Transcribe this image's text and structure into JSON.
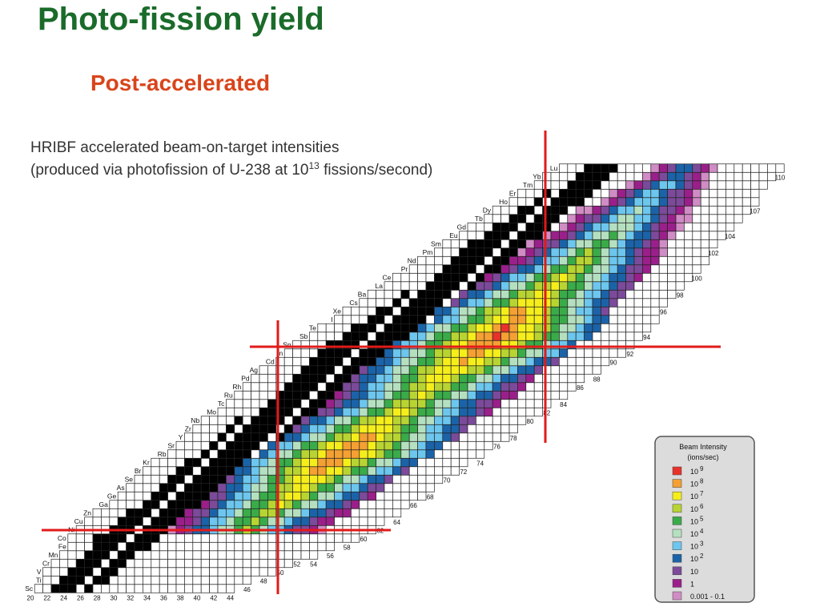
{
  "title": "Photo-fission yield",
  "subtitle": "Post-accelerated",
  "figure": {
    "heading_line1": "HRIBF accelerated beam-on-target intensities",
    "heading_line2_parts": [
      "(produced via photofission of U-238 at 10",
      "13",
      " fissions/second)"
    ],
    "elements": [
      "Sc",
      "Ti",
      "V",
      "Cr",
      "Mn",
      "Fe",
      "Co",
      "Ni",
      "Cu",
      "Zn",
      "Ga",
      "Ge",
      "As",
      "Se",
      "Br",
      "Kr",
      "Rb",
      "Sr",
      "Y",
      "Zr",
      "Nb",
      "Mo",
      "Tc",
      "Ru",
      "Rh",
      "Pd",
      "Ag",
      "Cd",
      "In",
      "Sn",
      "Sb",
      "Te",
      "I",
      "Xe",
      "Cs",
      "Ba",
      "La",
      "Ce",
      "Pr",
      "Nd",
      "Pm",
      "Sm",
      "Eu",
      "Gd",
      "Tb",
      "Dy",
      "Ho",
      "Er",
      "Tm",
      "Yb",
      "Lu"
    ],
    "neutron_numbers": [
      20,
      22,
      24,
      26,
      28,
      30,
      32,
      34,
      36,
      38,
      40,
      42,
      44,
      46,
      48,
      50,
      52,
      54,
      56,
      58,
      60,
      62,
      64,
      66,
      68,
      70,
      72,
      74,
      76,
      78,
      80,
      82,
      84,
      86,
      88,
      90,
      92,
      94,
      96,
      98,
      100,
      102,
      104,
      107,
      110
    ],
    "legend": {
      "title": "Beam Intensity",
      "unit": "(ions/sec)",
      "entries": [
        {
          "color": "#e8312a",
          "text": "10",
          "sup": "9"
        },
        {
          "color": "#f5a032",
          "text": "10",
          "sup": "8"
        },
        {
          "color": "#f5ee1a",
          "text": "10",
          "sup": "7"
        },
        {
          "color": "#b8d432",
          "text": "10",
          "sup": "6"
        },
        {
          "color": "#3aab49",
          "text": "10",
          "sup": "5"
        },
        {
          "color": "#b5e0c0",
          "text": "10",
          "sup": "4"
        },
        {
          "color": "#6cc6ee",
          "text": "10",
          "sup": "3"
        },
        {
          "color": "#1b63a8",
          "text": "10",
          "sup": "2"
        },
        {
          "color": "#7c4a9a",
          "text": "10"
        },
        {
          "color": "#9b1f8a",
          "text": "1"
        },
        {
          "color": "#d08cc4",
          "text": "0.001 - 0.1"
        }
      ]
    }
  }
}
